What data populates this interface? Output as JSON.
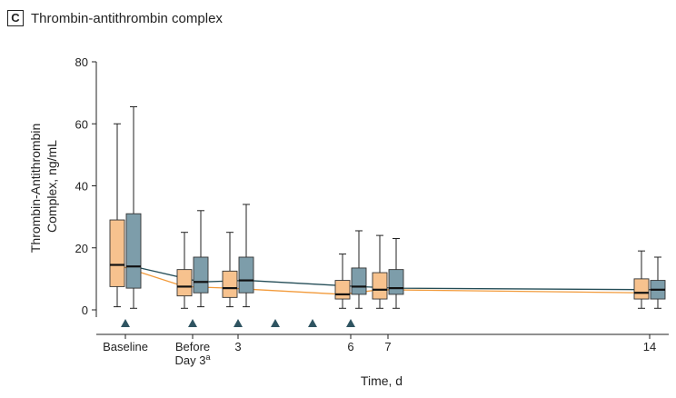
{
  "panel": {
    "letter": "C",
    "title": "Thrombin-antithrombin complex"
  },
  "colors": {
    "group1": "#F7C28E",
    "group2": "#7D9DAA",
    "line1": "#F29A3A",
    "line2": "#244D57",
    "marker": "#2F5461",
    "axis": "#222222"
  },
  "chart_data": {
    "type": "box",
    "xlabel": "Time, d",
    "ylabel_lines": [
      "Thrombin-Antithrombin",
      "Complex, ng/mL"
    ],
    "ylim": [
      0,
      80
    ],
    "yticks": [
      0,
      20,
      40,
      60,
      80
    ],
    "x_ticks": [
      {
        "label": "Baseline"
      },
      {
        "label": "Before",
        "label2": "Day 3",
        "sup": "a"
      },
      {
        "label": "3"
      },
      {
        "label": "6"
      },
      {
        "label": "7"
      },
      {
        "label": "14"
      }
    ],
    "time_points": [
      "Baseline",
      "Before Day 3",
      "3",
      "6",
      "7",
      "14"
    ],
    "series": [
      {
        "boxes": [
          {
            "min": 1,
            "q1": 7.5,
            "median": 14.5,
            "q3": 29,
            "max": 60
          },
          {
            "min": 0.5,
            "q1": 4.5,
            "median": 7.5,
            "q3": 13,
            "max": 25
          },
          {
            "min": 1,
            "q1": 4,
            "median": 7,
            "q3": 12.5,
            "max": 25
          },
          {
            "min": 0.5,
            "q1": 3.5,
            "median": 5,
            "q3": 9.5,
            "max": 18
          },
          {
            "min": 0.5,
            "q1": 3.5,
            "median": 6.5,
            "q3": 12,
            "max": 24
          },
          {
            "min": 0.5,
            "q1": 3.5,
            "median": 5.5,
            "q3": 10,
            "max": 19
          }
        ]
      },
      {
        "boxes": [
          {
            "min": 0.5,
            "q1": 7,
            "median": 14,
            "q3": 31,
            "max": 65.5
          },
          {
            "min": 1,
            "q1": 5.5,
            "median": 9,
            "q3": 17,
            "max": 32
          },
          {
            "min": 1,
            "q1": 5.5,
            "median": 9.5,
            "q3": 17,
            "max": 34
          },
          {
            "min": 0.5,
            "q1": 5,
            "median": 7.5,
            "q3": 13.5,
            "max": 25.5
          },
          {
            "min": 0.5,
            "q1": 5,
            "median": 7,
            "q3": 13,
            "max": 23
          },
          {
            "min": 0.5,
            "q1": 3.5,
            "median": 6.5,
            "q3": 9.5,
            "max": 17
          }
        ]
      }
    ],
    "markers": {
      "shape": "triangle",
      "count": 7
    }
  }
}
